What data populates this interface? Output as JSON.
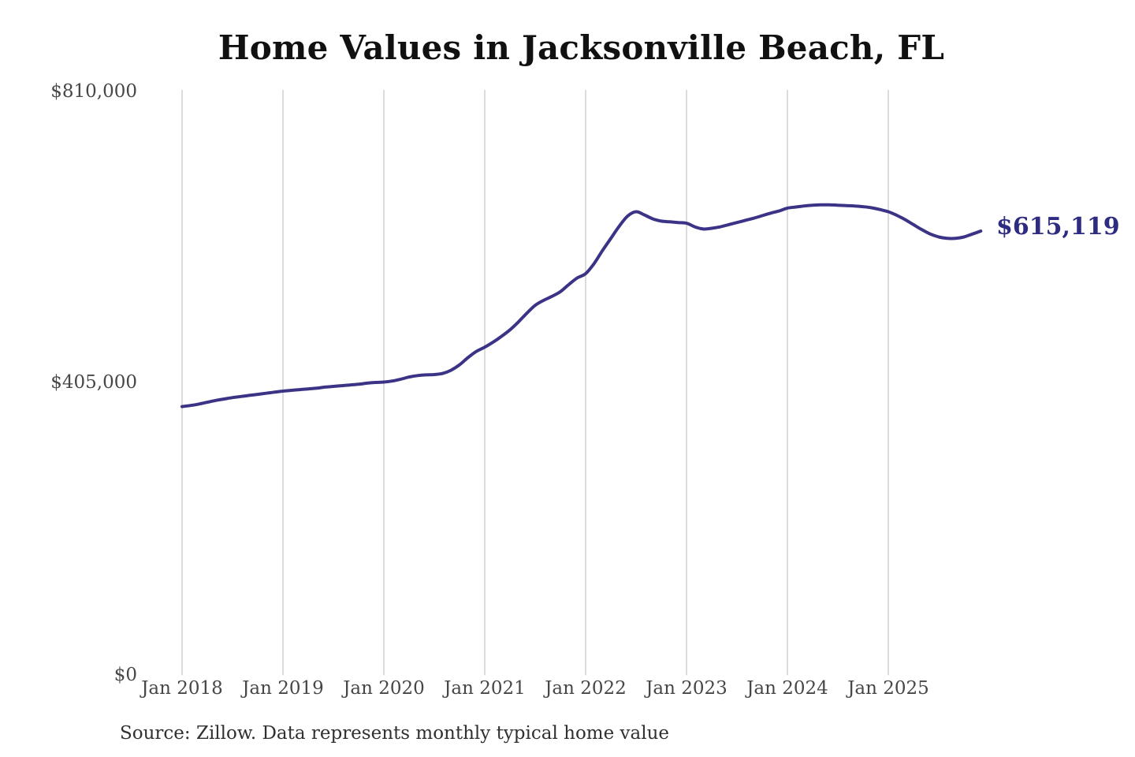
{
  "chart": {
    "title": "Home Values in Jacksonville Beach, FL",
    "end_label": "$615,119",
    "source_note": "Source: Zillow. Data represents monthly typical home value",
    "colors": {
      "line": "#3a3386",
      "end_label": "#2e2c80",
      "gridline": "#cdcdcd",
      "title": "#111111",
      "axis_label": "#474747",
      "source": "#303030",
      "background": "#ffffff"
    }
  },
  "chart_data": {
    "type": "line",
    "title": "Home Values in Jacksonville Beach, FL",
    "xlabel": "",
    "ylabel": "",
    "ylim": [
      0,
      810000
    ],
    "y_tick_labels": [
      "$810,000",
      "$405,000",
      "$0"
    ],
    "y_tick_values": [
      810000,
      405000,
      0
    ],
    "x_tick_labels": [
      "Jan 2018",
      "Jan 2019",
      "Jan 2020",
      "Jan 2021",
      "Jan 2022",
      "Jan 2023",
      "Jan 2024",
      "Jan 2025"
    ],
    "grid": "vertical-only",
    "legend": "none",
    "annotation": {
      "text": "$615,119",
      "attached_to": "last-point"
    },
    "series": [
      {
        "name": "Monthly typical home value",
        "start_month": "2018-01",
        "end_month": "2025-12",
        "interval": "monthly",
        "final_value": 615119,
        "values": [
          371500,
          373000,
          375000,
          377500,
          380000,
          382000,
          384000,
          385500,
          387000,
          388500,
          390000,
          391500,
          393000,
          394000,
          395000,
          396000,
          397000,
          398500,
          399500,
          400500,
          401500,
          402500,
          404000,
          405000,
          405500,
          407000,
          409500,
          412500,
          414500,
          415500,
          416000,
          417500,
          422000,
          429500,
          439500,
          448000,
          454000,
          461000,
          469000,
          478000,
          489000,
          501000,
          512000,
          519000,
          524500,
          531000,
          541000,
          550000,
          556000,
          570000,
          588000,
          605000,
          622000,
          636000,
          642000,
          637500,
          632000,
          629000,
          628000,
          627000,
          626000,
          621000,
          618000,
          619000,
          621000,
          624000,
          627000,
          630000,
          633000,
          636500,
          640000,
          643000,
          647000,
          648500,
          650000,
          651000,
          651500,
          651500,
          651000,
          650500,
          650000,
          649000,
          647500,
          645000,
          642000,
          637000,
          631000,
          624000,
          617000,
          611000,
          607000,
          605000,
          605000,
          607000,
          611000,
          615119
        ]
      }
    ]
  }
}
